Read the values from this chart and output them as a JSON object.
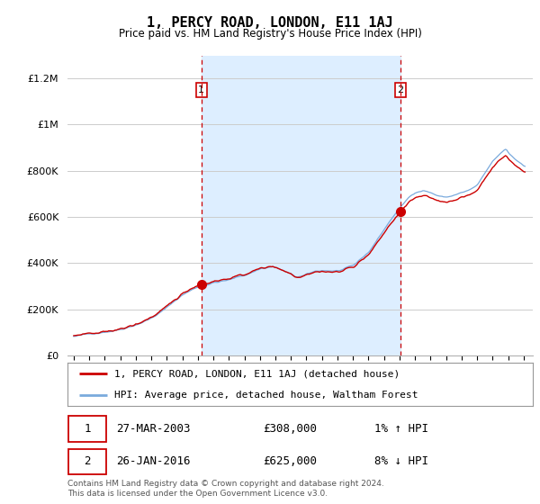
{
  "title": "1, PERCY ROAD, LONDON, E11 1AJ",
  "subtitle": "Price paid vs. HM Land Registry's House Price Index (HPI)",
  "ylim": [
    0,
    1300000
  ],
  "yticks": [
    0,
    200000,
    400000,
    600000,
    800000,
    1000000,
    1200000
  ],
  "ytick_labels": [
    "£0",
    "£200K",
    "£400K",
    "£600K",
    "£800K",
    "£1M",
    "£1.2M"
  ],
  "sale1_year": 2003.23,
  "sale1_price": 308000,
  "sale2_year": 2016.07,
  "sale2_price": 625000,
  "xstart": 1995,
  "xend": 2024,
  "line1_label": "1, PERCY ROAD, LONDON, E11 1AJ (detached house)",
  "line2_label": "HPI: Average price, detached house, Waltham Forest",
  "line1_color": "#cc0000",
  "line2_color": "#7aaadd",
  "shade_color": "#ddeeff",
  "vline_color": "#cc0000",
  "grid_color": "#cccccc",
  "footer": "Contains HM Land Registry data © Crown copyright and database right 2024.\nThis data is licensed under the Open Government Licence v3.0."
}
